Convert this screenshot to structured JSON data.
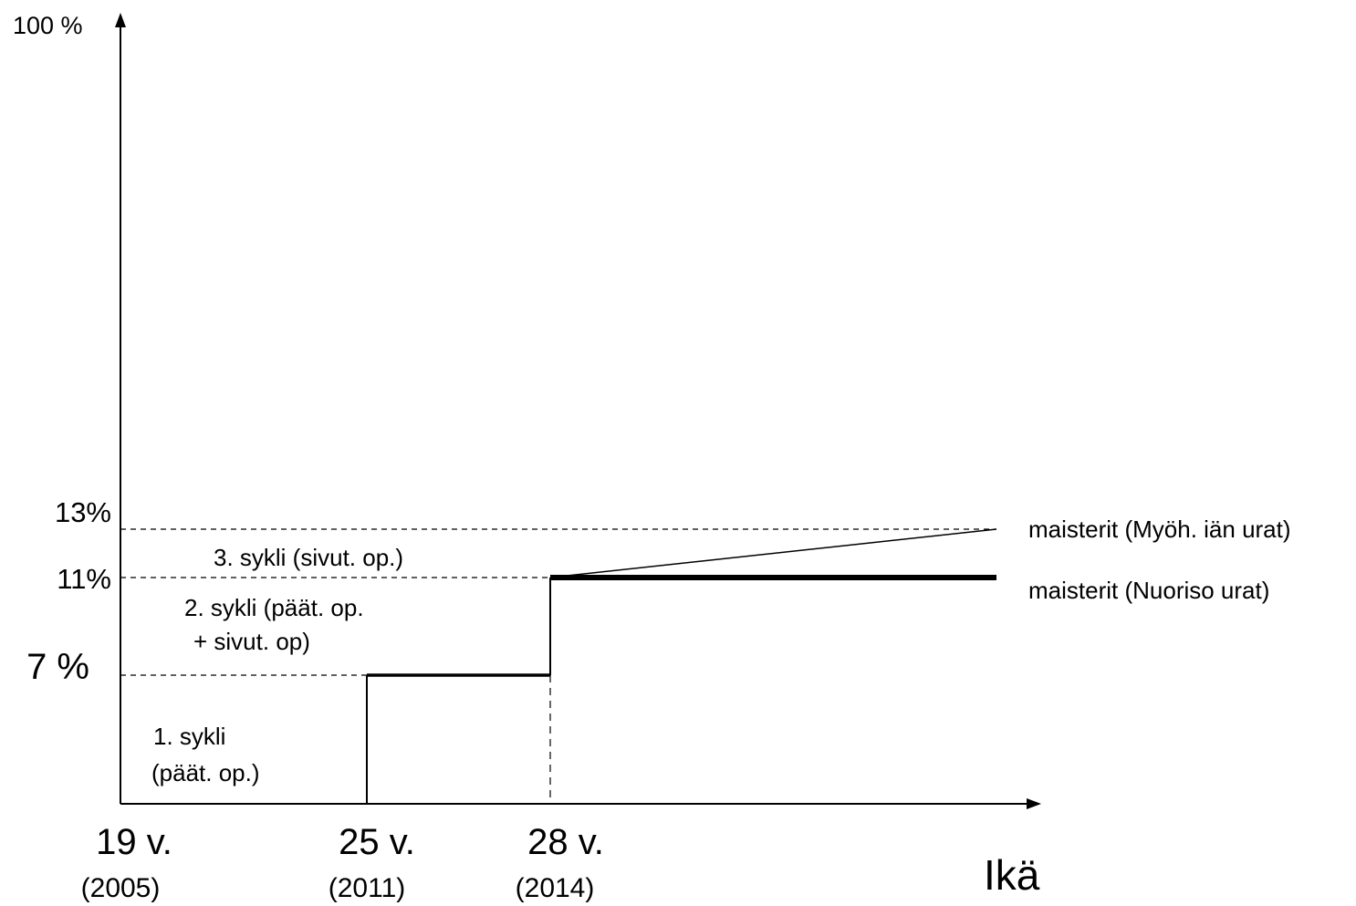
{
  "y_axis": {
    "top_label": "100 %",
    "levels": [
      {
        "label": "13%",
        "value": 13
      },
      {
        "label": "11%",
        "value": 11
      },
      {
        "label": "7 %",
        "value": 7
      }
    ]
  },
  "x_axis": {
    "title": "Ikä",
    "ticks": [
      {
        "age": "19 v.",
        "year": "(2005)"
      },
      {
        "age": "25 v.",
        "year": "(2011)"
      },
      {
        "age": "28 v.",
        "year": "(2014)"
      }
    ]
  },
  "cycles": {
    "cycle1_line1": "1. sykli",
    "cycle1_line2": "(päät. op.)",
    "cycle2_line1": "2. sykli (päät. op.",
    "cycle2_line2": "+ sivut. op)",
    "cycle3": "3. sykli (sivut. op.)"
  },
  "series_labels": {
    "late_career": "maisterit (Myöh. iän urat)",
    "youth_career": "maisterit (Nuoriso urat)"
  },
  "chart_data": {
    "type": "line",
    "xlabel": "Ikä",
    "ylabel": "",
    "ylim": [
      0,
      100
    ],
    "x_ticks": [
      "19 v. (2005)",
      "25 v. (2011)",
      "28 v. (2014)"
    ],
    "y_ticks": [
      "7 %",
      "11%",
      "13%",
      "100 %"
    ],
    "series": [
      {
        "name": "maisterit (Nuoriso urat)",
        "points": [
          {
            "x": "25 v.",
            "y": 0
          },
          {
            "x": "25 v.",
            "y": 7
          },
          {
            "x": "28 v.",
            "y": 7
          },
          {
            "x": "28 v.",
            "y": 11
          },
          {
            "x": "end",
            "y": 11
          }
        ]
      },
      {
        "name": "maisterit (Myöh. iän urat)",
        "points": [
          {
            "x": "28 v.",
            "y": 11
          },
          {
            "x": "end",
            "y": 13
          }
        ]
      }
    ]
  },
  "colors": {
    "ink": "#000000",
    "background": "#ffffff"
  }
}
